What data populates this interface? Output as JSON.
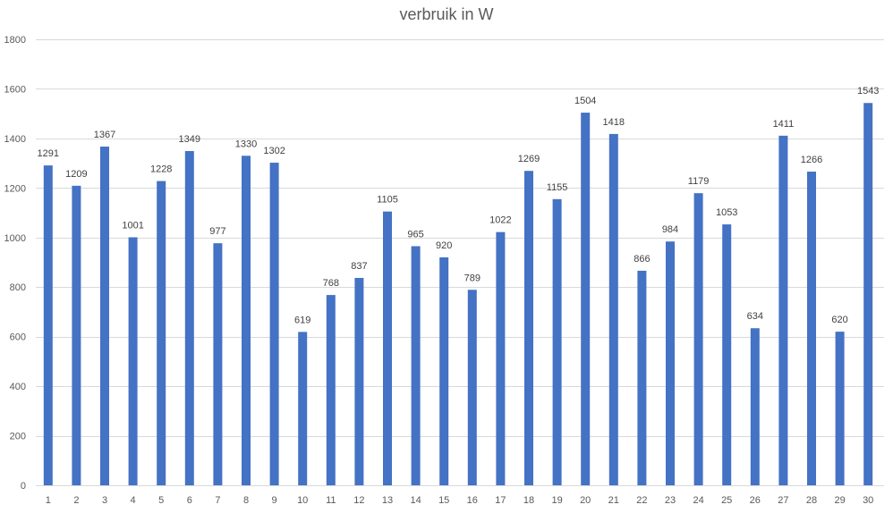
{
  "chart_data": {
    "type": "bar",
    "title": "verbruik in W",
    "xlabel": "",
    "ylabel": "",
    "ylim": [
      0,
      1800
    ],
    "yticks": [
      0,
      200,
      400,
      600,
      800,
      1000,
      1200,
      1400,
      1600,
      1800
    ],
    "grid": true,
    "legend": "none",
    "bar_color": "#4472c4",
    "categories": [
      "1",
      "2",
      "3",
      "4",
      "5",
      "6",
      "7",
      "8",
      "9",
      "10",
      "11",
      "12",
      "13",
      "14",
      "15",
      "16",
      "17",
      "18",
      "19",
      "20",
      "21",
      "22",
      "23",
      "24",
      "25",
      "26",
      "27",
      "28",
      "29",
      "30"
    ],
    "values": [
      1291,
      1209,
      1367,
      1001,
      1228,
      1349,
      977,
      1330,
      1302,
      619,
      768,
      837,
      1105,
      965,
      920,
      789,
      1022,
      1269,
      1155,
      1504,
      1418,
      866,
      984,
      1179,
      1053,
      634,
      1411,
      1266,
      620,
      1543
    ],
    "data_labels": [
      "1291",
      "1209",
      "1367",
      "1001",
      "1228",
      "1349",
      "977",
      "1330",
      "1302",
      "619",
      "768",
      "837",
      "1105",
      "965",
      "920",
      "789",
      "1022",
      "1269",
      "1155",
      "1504",
      "1418",
      "866",
      "984",
      "1179",
      "1053",
      "634",
      "1411",
      "1266",
      "620",
      "1543"
    ]
  }
}
